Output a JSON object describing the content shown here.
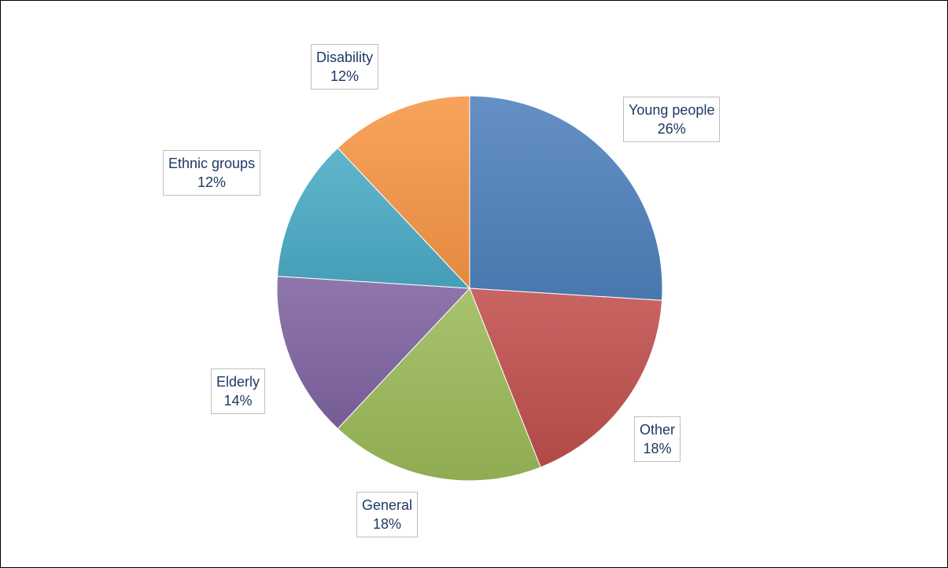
{
  "chart_data": {
    "type": "pie",
    "title": "",
    "slices": [
      {
        "key": "young",
        "label": "Young people",
        "percent_label": "26%",
        "value": 26,
        "color": "#4f81bd"
      },
      {
        "key": "other",
        "label": "Other",
        "percent_label": "18%",
        "value": 18,
        "color": "#c0504d"
      },
      {
        "key": "general",
        "label": "General",
        "percent_label": "18%",
        "value": 18,
        "color": "#9bbb59"
      },
      {
        "key": "elderly",
        "label": "Elderly",
        "percent_label": "14%",
        "value": 14,
        "color": "#8064a2"
      },
      {
        "key": "ethnic",
        "label": "Ethnic groups",
        "percent_label": "12%",
        "value": 12,
        "color": "#4bacc6"
      },
      {
        "key": "disability",
        "label": "Disability",
        "percent_label": "12%",
        "value": 12,
        "color": "#f79646"
      }
    ],
    "legend": "none",
    "data_labels": "outside"
  }
}
